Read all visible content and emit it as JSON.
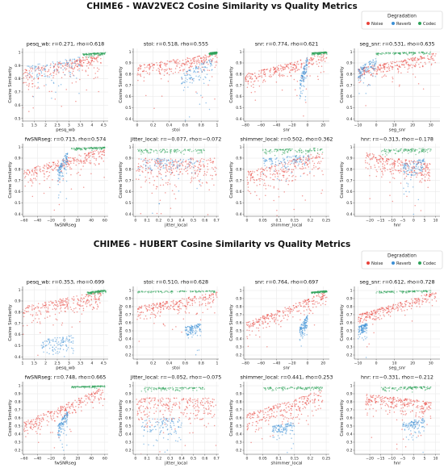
{
  "figures": [
    {
      "title": "CHIME6 - WAV2VEC2 Cosine Similarity vs Quality Metrics",
      "legend": {
        "title": "Degradation",
        "entries": [
          "Noise",
          "Reverb",
          "Codec"
        ]
      }
    },
    {
      "title": "CHIME6 - HUBERT Cosine Similarity vs Quality Metrics",
      "legend": {
        "title": "Degradation",
        "entries": [
          "Noise",
          "Reverb",
          "Codec"
        ]
      }
    }
  ],
  "colors": {
    "Noise": "#e8423a",
    "Reverb": "#3c8fd6",
    "Codec": "#2ea35a",
    "grid": "#e6e6e6",
    "axis": "#555555"
  },
  "chart_data": [
    {
      "type": "scatter",
      "figure": 0,
      "title": "pesq_wb: r=0.271, rho=0.618",
      "xlabel": "pesq_wb",
      "ylabel": "Cosine Similarity",
      "xlim": [
        1.0,
        4.7
      ],
      "ylim": [
        0.48,
        1.03
      ],
      "xticks": [
        1.0,
        1.5,
        2.0,
        2.5,
        3.0,
        3.5,
        4.0,
        4.5
      ],
      "yticks": [
        0.5,
        0.6,
        0.7,
        0.8,
        0.9,
        1.0
      ],
      "grid": true,
      "series": [
        {
          "name": "Noise",
          "x_range": [
            1.0,
            4.4
          ],
          "y_center": [
            0.87,
            0.99
          ],
          "spread": 0.06
        },
        {
          "name": "Reverb",
          "x_range": [
            1.2,
            3.5
          ],
          "y_center": [
            0.9,
            0.97
          ],
          "spread": 0.07
        },
        {
          "name": "Codec",
          "x_range": [
            3.6,
            4.6
          ],
          "y_center": [
            0.99,
            1.0
          ],
          "spread": 0.01
        }
      ]
    },
    {
      "type": "scatter",
      "figure": 0,
      "title": "stoi: r=0.518, rho=0.555",
      "xlabel": "stoi",
      "ylabel": "Cosine Similarity",
      "xlim": [
        -0.05,
        1.02
      ],
      "ylim": [
        0.38,
        1.03
      ],
      "xticks": [
        0.0,
        0.2,
        0.4,
        0.6,
        0.8,
        1.0
      ],
      "yticks": [
        0.4,
        0.5,
        0.6,
        0.7,
        0.8,
        0.9,
        1.0
      ],
      "grid": true,
      "series": [
        {
          "name": "Noise",
          "x_range": [
            0.0,
            1.0
          ],
          "y_center": [
            0.88,
            0.99
          ],
          "spread": 0.06
        },
        {
          "name": "Reverb",
          "x_range": [
            0.55,
            0.95
          ],
          "y_center": [
            0.8,
            0.95
          ],
          "spread": 0.07
        },
        {
          "name": "Codec",
          "x_range": [
            0.9,
            1.0
          ],
          "y_center": [
            0.99,
            1.0
          ],
          "spread": 0.01
        }
      ]
    },
    {
      "type": "scatter",
      "figure": 0,
      "title": "snr: r=0.774, rho=0.621",
      "xlabel": "snr",
      "ylabel": "Cosine Similarity",
      "xlim": [
        -82,
        28
      ],
      "ylim": [
        0.38,
        1.03
      ],
      "xticks": [
        -80,
        -60,
        -40,
        -20,
        0,
        20
      ],
      "yticks": [
        0.4,
        0.5,
        0.6,
        0.7,
        0.8,
        0.9,
        1.0
      ],
      "grid": true,
      "series": [
        {
          "name": "Noise",
          "x_range": [
            -80,
            25
          ],
          "y_center": [
            0.8,
            0.99
          ],
          "spread": 0.06
        },
        {
          "name": "Reverb",
          "x_range": [
            -10,
            0
          ],
          "y_center": [
            0.75,
            0.97
          ],
          "spread": 0.08
        },
        {
          "name": "Codec",
          "x_range": [
            5,
            25
          ],
          "y_center": [
            0.99,
            1.0
          ],
          "spread": 0.01
        }
      ]
    },
    {
      "type": "scatter",
      "figure": 0,
      "title": "seg_snr: r=0.531, rho=0.635",
      "xlabel": "seg_snr",
      "ylabel": "Cosine Similarity",
      "xlim": [
        -12,
        35
      ],
      "ylim": [
        0.38,
        1.03
      ],
      "xticks": [
        -10,
        0,
        10,
        20,
        30
      ],
      "yticks": [
        0.4,
        0.5,
        0.6,
        0.7,
        0.8,
        0.9,
        1.0
      ],
      "grid": true,
      "series": [
        {
          "name": "Noise",
          "x_range": [
            -10,
            33
          ],
          "y_center": [
            0.85,
            0.99
          ],
          "spread": 0.05
        },
        {
          "name": "Reverb",
          "x_range": [
            -10,
            0
          ],
          "y_center": [
            0.85,
            0.95
          ],
          "spread": 0.06
        },
        {
          "name": "Codec",
          "x_range": [
            0,
            30
          ],
          "y_center": [
            0.99,
            1.0
          ],
          "spread": 0.01
        }
      ]
    },
    {
      "type": "scatter",
      "figure": 0,
      "title": "fwSNRseg: r=0.713, rho=0.574",
      "xlabel": "fwSNRseg",
      "ylabel": "Cosine Similarity",
      "xlim": [
        -62,
        65
      ],
      "ylim": [
        0.38,
        1.03
      ],
      "xticks": [
        -60,
        -40,
        -20,
        0,
        20,
        40,
        60
      ],
      "yticks": [
        0.4,
        0.5,
        0.6,
        0.7,
        0.8,
        0.9,
        1.0
      ],
      "grid": true,
      "series": [
        {
          "name": "Noise",
          "x_range": [
            -60,
            60
          ],
          "y_center": [
            0.8,
            0.99
          ],
          "spread": 0.06
        },
        {
          "name": "Reverb",
          "x_range": [
            -10,
            5
          ],
          "y_center": [
            0.8,
            0.97
          ],
          "spread": 0.07
        },
        {
          "name": "Codec",
          "x_range": [
            10,
            60
          ],
          "y_center": [
            0.99,
            1.0
          ],
          "spread": 0.01
        }
      ]
    },
    {
      "type": "scatter",
      "figure": 0,
      "title": "jitter_local: r=−0.077, rho=−0.072",
      "xlabel": "jitter_local",
      "ylabel": "Cosine Similarity",
      "xlim": [
        -0.02,
        0.72
      ],
      "ylim": [
        0.38,
        1.03
      ],
      "xticks": [
        0.0,
        0.1,
        0.2,
        0.3,
        0.4,
        0.5,
        0.6,
        0.7
      ],
      "yticks": [
        0.4,
        0.5,
        0.6,
        0.7,
        0.8,
        0.9,
        1.0
      ],
      "grid": true,
      "series": [
        {
          "name": "Noise",
          "x_range": [
            0.0,
            0.7
          ],
          "y_center": [
            0.9,
            0.9
          ],
          "spread": 0.12
        },
        {
          "name": "Reverb",
          "x_range": [
            0.02,
            0.6
          ],
          "y_center": [
            0.9,
            0.9
          ],
          "spread": 0.08
        },
        {
          "name": "Codec",
          "x_range": [
            0.02,
            0.6
          ],
          "y_center": [
            0.98,
            0.98
          ],
          "spread": 0.02
        }
      ]
    },
    {
      "type": "scatter",
      "figure": 0,
      "title": "shimmer_local: r=0.502, rho=0.362",
      "xlabel": "shimmer_local",
      "ylabel": "Cosine Similarity",
      "xlim": [
        -0.01,
        0.26
      ],
      "ylim": [
        0.38,
        1.03
      ],
      "xticks": [
        0.0,
        0.05,
        0.1,
        0.15,
        0.2,
        0.25
      ],
      "yticks": [
        0.4,
        0.5,
        0.6,
        0.7,
        0.8,
        0.9,
        1.0
      ],
      "grid": true,
      "series": [
        {
          "name": "Noise",
          "x_range": [
            0.0,
            0.24
          ],
          "y_center": [
            0.78,
            0.96
          ],
          "spread": 0.09
        },
        {
          "name": "Reverb",
          "x_range": [
            0.05,
            0.2
          ],
          "y_center": [
            0.9,
            0.93
          ],
          "spread": 0.05
        },
        {
          "name": "Codec",
          "x_range": [
            0.05,
            0.24
          ],
          "y_center": [
            0.98,
            0.99
          ],
          "spread": 0.02
        }
      ]
    },
    {
      "type": "scatter",
      "figure": 0,
      "title": "hnr: r=−0.313, rho=−0.178",
      "xlabel": "hnr",
      "ylabel": "Cosine Similarity",
      "xlim": [
        -27,
        12
      ],
      "ylim": [
        0.38,
        1.03
      ],
      "xticks": [
        -20,
        -15,
        -10,
        -5,
        0,
        5,
        10
      ],
      "yticks": [
        0.4,
        0.5,
        0.6,
        0.7,
        0.8,
        0.9,
        1.0
      ],
      "grid": true,
      "series": [
        {
          "name": "Noise",
          "x_range": [
            -22,
            8
          ],
          "y_center": [
            0.95,
            0.85
          ],
          "spread": 0.08
        },
        {
          "name": "Reverb",
          "x_range": [
            -5,
            5
          ],
          "y_center": [
            0.85,
            0.9
          ],
          "spread": 0.08
        },
        {
          "name": "Codec",
          "x_range": [
            -15,
            8
          ],
          "y_center": [
            0.98,
            0.99
          ],
          "spread": 0.02
        }
      ]
    },
    {
      "type": "scatter",
      "figure": 1,
      "title": "pesq_wb: r=0.353, rho=0.699",
      "xlabel": "pesq_wb",
      "ylabel": "Cosine Similarity",
      "xlim": [
        1.0,
        4.7
      ],
      "ylim": [
        0.38,
        1.03
      ],
      "xticks": [
        1.0,
        1.5,
        2.0,
        2.5,
        3.0,
        3.5,
        4.0,
        4.5
      ],
      "yticks": [
        0.4,
        0.5,
        0.6,
        0.7,
        0.8,
        0.9,
        1.0
      ],
      "grid": true,
      "series": [
        {
          "name": "Noise",
          "x_range": [
            1.0,
            4.4
          ],
          "y_center": [
            0.85,
            0.99
          ],
          "spread": 0.07
        },
        {
          "name": "Reverb",
          "x_range": [
            1.8,
            3.2
          ],
          "y_center": [
            0.55,
            0.6
          ],
          "spread": 0.08
        },
        {
          "name": "Codec",
          "x_range": [
            3.8,
            4.6
          ],
          "y_center": [
            0.98,
            1.0
          ],
          "spread": 0.01
        }
      ]
    },
    {
      "type": "scatter",
      "figure": 1,
      "title": "stoi: r=0.510, rho=0.628",
      "xlabel": "stoi",
      "ylabel": "Cosine Similarity",
      "xlim": [
        -0.05,
        1.02
      ],
      "ylim": [
        0.15,
        1.05
      ],
      "xticks": [
        0.0,
        0.2,
        0.4,
        0.6,
        0.8,
        1.0
      ],
      "yticks": [
        0.2,
        0.3,
        0.4,
        0.5,
        0.6,
        0.7,
        0.8,
        0.9,
        1.0
      ],
      "grid": true,
      "series": [
        {
          "name": "Noise",
          "x_range": [
            0.0,
            1.0
          ],
          "y_center": [
            0.8,
            0.98
          ],
          "spread": 0.08
        },
        {
          "name": "Reverb",
          "x_range": [
            0.6,
            0.8
          ],
          "y_center": [
            0.55,
            0.6
          ],
          "spread": 0.06
        },
        {
          "name": "Codec",
          "x_range": [
            0.0,
            1.0
          ],
          "y_center": [
            0.99,
            1.0
          ],
          "spread": 0.01
        }
      ]
    },
    {
      "type": "scatter",
      "figure": 1,
      "title": "snr: r=0.764, rho=0.697",
      "xlabel": "snr",
      "ylabel": "Cosine Similarity",
      "xlim": [
        -82,
        28
      ],
      "ylim": [
        0.15,
        1.05
      ],
      "xticks": [
        -80,
        -60,
        -40,
        -20,
        0,
        20
      ],
      "yticks": [
        0.2,
        0.3,
        0.4,
        0.5,
        0.6,
        0.7,
        0.8,
        0.9,
        1.0
      ],
      "grid": true,
      "series": [
        {
          "name": "Noise",
          "x_range": [
            -80,
            25
          ],
          "y_center": [
            0.6,
            0.99
          ],
          "spread": 0.08
        },
        {
          "name": "Reverb",
          "x_range": [
            -10,
            0
          ],
          "y_center": [
            0.55,
            0.7
          ],
          "spread": 0.08
        },
        {
          "name": "Codec",
          "x_range": [
            5,
            25
          ],
          "y_center": [
            0.98,
            1.0
          ],
          "spread": 0.01
        }
      ]
    },
    {
      "type": "scatter",
      "figure": 1,
      "title": "seg_snr: r=0.612, rho=0.728",
      "xlabel": "seg_snr",
      "ylabel": "Cosine Similarity",
      "xlim": [
        -12,
        35
      ],
      "ylim": [
        0.15,
        1.05
      ],
      "xticks": [
        -10,
        0,
        10,
        20,
        30
      ],
      "yticks": [
        0.2,
        0.3,
        0.4,
        0.5,
        0.6,
        0.7,
        0.8,
        0.9,
        1.0
      ],
      "grid": true,
      "series": [
        {
          "name": "Noise",
          "x_range": [
            -10,
            33
          ],
          "y_center": [
            0.7,
            0.99
          ],
          "spread": 0.06
        },
        {
          "name": "Reverb",
          "x_range": [
            -10,
            -5
          ],
          "y_center": [
            0.55,
            0.6
          ],
          "spread": 0.06
        },
        {
          "name": "Codec",
          "x_range": [
            0,
            30
          ],
          "y_center": [
            0.99,
            1.0
          ],
          "spread": 0.01
        }
      ]
    },
    {
      "type": "scatter",
      "figure": 1,
      "title": "fwSNRseg: r=0.748, rho=0.665",
      "xlabel": "fwSNRseg",
      "ylabel": "Cosine Similarity",
      "xlim": [
        -62,
        65
      ],
      "ylim": [
        0.15,
        1.05
      ],
      "xticks": [
        -60,
        -40,
        -20,
        0,
        20,
        40,
        60
      ],
      "yticks": [
        0.2,
        0.3,
        0.4,
        0.5,
        0.6,
        0.7,
        0.8,
        0.9,
        1.0
      ],
      "grid": true,
      "series": [
        {
          "name": "Noise",
          "x_range": [
            -60,
            60
          ],
          "y_center": [
            0.55,
            0.99
          ],
          "spread": 0.08
        },
        {
          "name": "Reverb",
          "x_range": [
            -10,
            5
          ],
          "y_center": [
            0.5,
            0.7
          ],
          "spread": 0.08
        },
        {
          "name": "Codec",
          "x_range": [
            10,
            60
          ],
          "y_center": [
            0.99,
            1.0
          ],
          "spread": 0.01
        }
      ]
    },
    {
      "type": "scatter",
      "figure": 1,
      "title": "jitter_local: r=−0.052, rho=−0.075",
      "xlabel": "jitter_local",
      "ylabel": "Cosine Similarity",
      "xlim": [
        -0.02,
        0.72
      ],
      "ylim": [
        0.15,
        1.05
      ],
      "xticks": [
        0.0,
        0.1,
        0.2,
        0.3,
        0.4,
        0.5,
        0.6,
        0.7
      ],
      "yticks": [
        0.2,
        0.3,
        0.4,
        0.5,
        0.6,
        0.7,
        0.8,
        0.9,
        1.0
      ],
      "grid": true,
      "series": [
        {
          "name": "Noise",
          "x_range": [
            0.0,
            0.7
          ],
          "y_center": [
            0.85,
            0.85
          ],
          "spread": 0.15
        },
        {
          "name": "Reverb",
          "x_range": [
            0.05,
            0.4
          ],
          "y_center": [
            0.6,
            0.6
          ],
          "spread": 0.12
        },
        {
          "name": "Codec",
          "x_range": [
            0.05,
            0.6
          ],
          "y_center": [
            0.98,
            0.98
          ],
          "spread": 0.02
        }
      ]
    },
    {
      "type": "scatter",
      "figure": 1,
      "title": "shimmer_local: r=0.441, rho=0.253",
      "xlabel": "shimmer_local",
      "ylabel": "Cosine Similarity",
      "xlim": [
        -0.01,
        0.26
      ],
      "ylim": [
        0.15,
        1.05
      ],
      "xticks": [
        0.0,
        0.05,
        0.1,
        0.15,
        0.2,
        0.25
      ],
      "yticks": [
        0.2,
        0.3,
        0.4,
        0.5,
        0.6,
        0.7,
        0.8,
        0.9,
        1.0
      ],
      "grid": true,
      "series": [
        {
          "name": "Noise",
          "x_range": [
            0.0,
            0.24
          ],
          "y_center": [
            0.65,
            0.95
          ],
          "spread": 0.12
        },
        {
          "name": "Reverb",
          "x_range": [
            0.08,
            0.15
          ],
          "y_center": [
            0.5,
            0.55
          ],
          "spread": 0.06
        },
        {
          "name": "Codec",
          "x_range": [
            0.05,
            0.24
          ],
          "y_center": [
            0.98,
            0.99
          ],
          "spread": 0.02
        }
      ]
    },
    {
      "type": "scatter",
      "figure": 1,
      "title": "hnr: r=−0.331, rho=−0.212",
      "xlabel": "hnr",
      "ylabel": "Cosine Similarity",
      "xlim": [
        -27,
        12
      ],
      "ylim": [
        0.15,
        1.05
      ],
      "xticks": [
        -20,
        -15,
        -10,
        -5,
        0,
        5,
        10
      ],
      "yticks": [
        0.2,
        0.3,
        0.4,
        0.5,
        0.6,
        0.7,
        0.8,
        0.9,
        1.0
      ],
      "grid": true,
      "series": [
        {
          "name": "Noise",
          "x_range": [
            -22,
            8
          ],
          "y_center": [
            0.9,
            0.8
          ],
          "spread": 0.1
        },
        {
          "name": "Reverb",
          "x_range": [
            -5,
            5
          ],
          "y_center": [
            0.55,
            0.6
          ],
          "spread": 0.08
        },
        {
          "name": "Codec",
          "x_range": [
            -15,
            8
          ],
          "y_center": [
            0.98,
            0.99
          ],
          "spread": 0.02
        }
      ]
    }
  ]
}
